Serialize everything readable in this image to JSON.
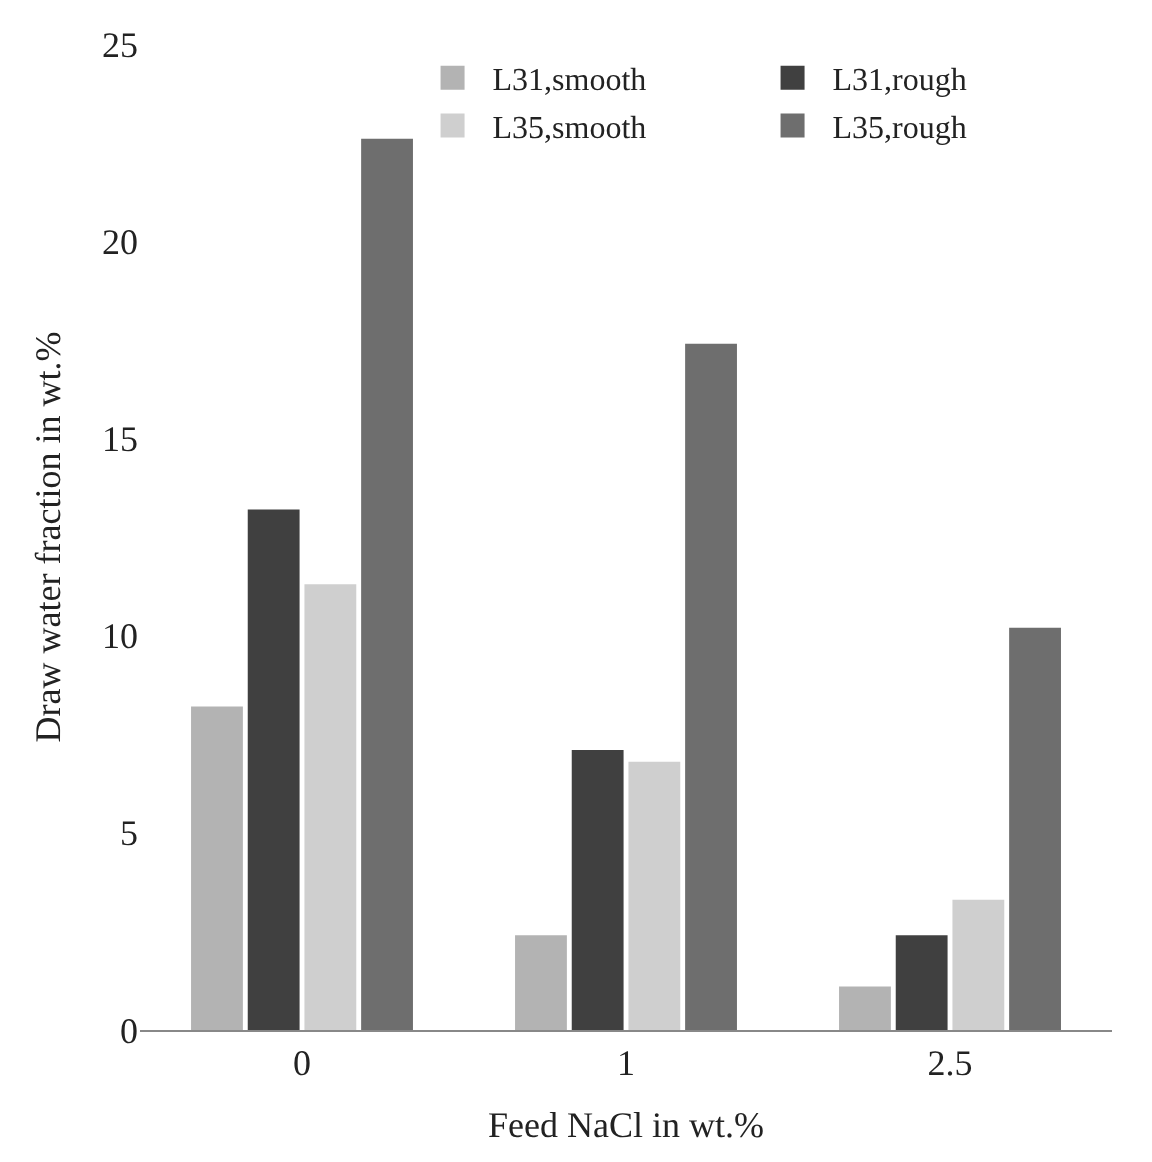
{
  "chart_data": {
    "type": "bar",
    "xlabel": "Feed NaCl in wt.%",
    "ylabel": "Draw water fraction in wt.%",
    "categories": [
      "0",
      "1",
      "2.5"
    ],
    "series": [
      {
        "name": "L31,smooth",
        "color": "#b3b3b3",
        "values": [
          8.2,
          2.4,
          1.1
        ]
      },
      {
        "name": "L31,rough",
        "color": "#404040",
        "values": [
          13.2,
          7.1,
          2.4
        ]
      },
      {
        "name": "L35,smooth",
        "color": "#cfcfcf",
        "values": [
          11.3,
          6.8,
          3.3
        ]
      },
      {
        "name": "L35,rough",
        "color": "#6e6e6e",
        "values": [
          22.6,
          17.4,
          10.2
        ]
      }
    ],
    "ylim": [
      0,
      25
    ],
    "yticks": [
      0,
      5,
      10,
      15,
      20,
      25
    ],
    "legend": "top right"
  }
}
